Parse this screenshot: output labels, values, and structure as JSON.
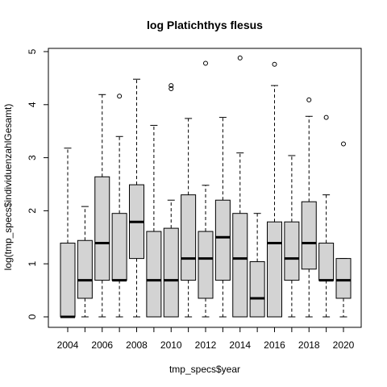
{
  "chart_data": {
    "type": "boxplot",
    "title": "log Platichthys flesus",
    "xlabel": "tmp_specs$year",
    "ylabel": "log(tmp_specs$individuenzahlGesamt)",
    "ylim": [
      0,
      5
    ],
    "yticks": [
      0,
      1,
      2,
      3,
      4,
      5
    ],
    "x_tick_labels": [
      "2004",
      "2006",
      "2008",
      "2010",
      "2012",
      "2014",
      "2016",
      "2018",
      "2020"
    ],
    "box_fill": "#d3d3d3",
    "grid": false,
    "boxes": [
      {
        "year": "2004",
        "min": 0,
        "q1": 0,
        "median": 0,
        "q3": 1.39,
        "max": 3.18,
        "outliers": []
      },
      {
        "year": "2005",
        "min": 0,
        "q1": 0.35,
        "median": 0.69,
        "q3": 1.44,
        "max": 2.08,
        "outliers": []
      },
      {
        "year": "2006",
        "min": 0,
        "q1": 0.69,
        "median": 1.39,
        "q3": 2.64,
        "max": 4.19,
        "outliers": []
      },
      {
        "year": "2007",
        "min": 0,
        "q1": 0.69,
        "median": 0.69,
        "q3": 1.95,
        "max": 3.4,
        "outliers": [
          4.16
        ]
      },
      {
        "year": "2008",
        "min": 0,
        "q1": 1.1,
        "median": 1.79,
        "q3": 2.49,
        "max": 4.48,
        "outliers": []
      },
      {
        "year": "2009",
        "min": 0,
        "q1": 0,
        "median": 0.69,
        "q3": 1.61,
        "max": 3.61,
        "outliers": []
      },
      {
        "year": "2010",
        "min": 0,
        "q1": 0,
        "median": 0.69,
        "q3": 1.67,
        "max": 2.2,
        "outliers": [
          4.3,
          4.36
        ]
      },
      {
        "year": "2011",
        "min": 0,
        "q1": 0.69,
        "median": 1.1,
        "q3": 2.3,
        "max": 3.74,
        "outliers": []
      },
      {
        "year": "2012",
        "min": 0,
        "q1": 0.35,
        "median": 1.1,
        "q3": 1.61,
        "max": 2.48,
        "outliers": [
          4.78
        ]
      },
      {
        "year": "2013",
        "min": 0,
        "q1": 0.69,
        "median": 1.5,
        "q3": 2.2,
        "max": 3.76,
        "outliers": []
      },
      {
        "year": "2014",
        "min": 0,
        "q1": 0,
        "median": 1.1,
        "q3": 1.95,
        "max": 3.09,
        "outliers": [
          4.88
        ]
      },
      {
        "year": "2015",
        "min": 0,
        "q1": 0,
        "median": 0.35,
        "q3": 1.04,
        "max": 1.95,
        "outliers": []
      },
      {
        "year": "2016",
        "min": 0,
        "q1": 0,
        "median": 1.39,
        "q3": 1.79,
        "max": 4.36,
        "outliers": [
          4.76
        ]
      },
      {
        "year": "2017",
        "min": 0,
        "q1": 0.69,
        "median": 1.1,
        "q3": 1.79,
        "max": 3.04,
        "outliers": []
      },
      {
        "year": "2018",
        "min": 0,
        "q1": 0.9,
        "median": 1.39,
        "q3": 2.17,
        "max": 3.78,
        "outliers": [
          4.09
        ]
      },
      {
        "year": "2019",
        "min": 0,
        "q1": 0.69,
        "median": 0.69,
        "q3": 1.39,
        "max": 2.3,
        "outliers": [
          3.76
        ]
      },
      {
        "year": "2020",
        "min": 0,
        "q1": 0.35,
        "median": 0.69,
        "q3": 1.1,
        "max": 1.1,
        "outliers": [
          3.26
        ]
      }
    ]
  }
}
